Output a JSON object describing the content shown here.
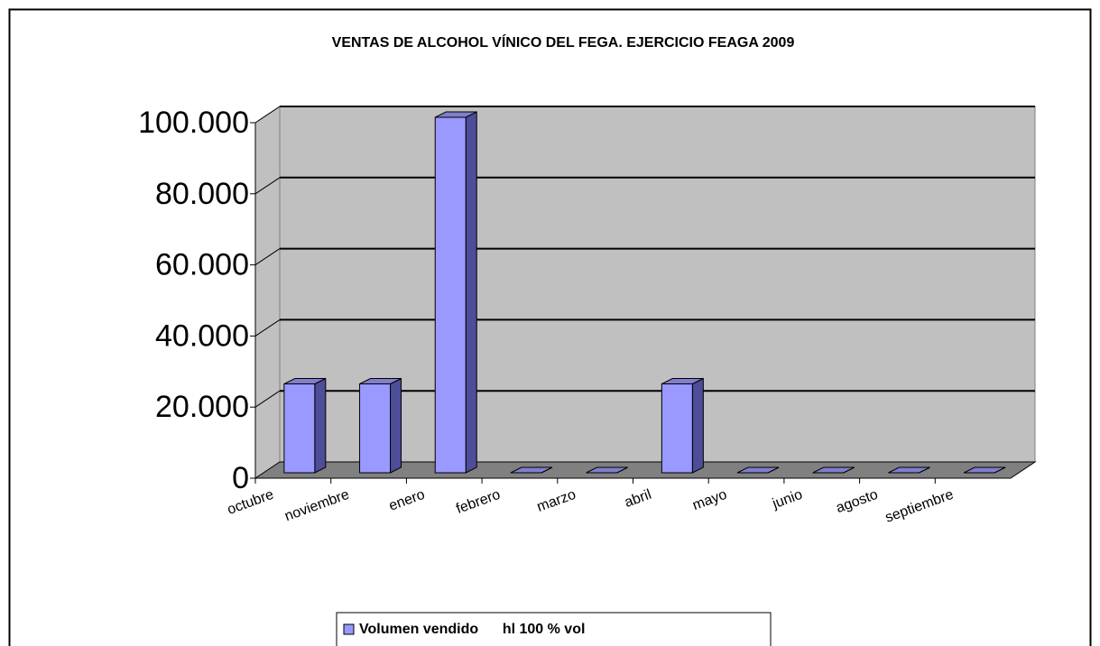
{
  "chart_data": {
    "type": "bar3d",
    "title": "VENTAS DE ALCOHOL VÍNICO DEL FEGA. EJERCICIO FEAGA 2009",
    "categories": [
      "octubre",
      "noviembre",
      "enero",
      "febrero",
      "marzo",
      "abril",
      "mayo",
      "junio",
      "agosto",
      "septiembre"
    ],
    "series": [
      {
        "name": "Volumen vendido      hl 100 % vol",
        "color": "#9999ff",
        "values": [
          25000,
          25000,
          100000,
          0,
          0,
          25000,
          0,
          0,
          0,
          0
        ]
      }
    ],
    "ylim": [
      0,
      100000
    ],
    "yticks": [
      0,
      {
        "value": 20000,
        "label": "20.000"
      },
      {
        "value": 40000,
        "label": "40.000"
      },
      {
        "value": 60000,
        "label": "60.000"
      },
      {
        "value": 80000,
        "label": "80.000"
      },
      {
        "value": 100000,
        "label": "100.000"
      }
    ],
    "grid": true,
    "legend": "bottom"
  }
}
